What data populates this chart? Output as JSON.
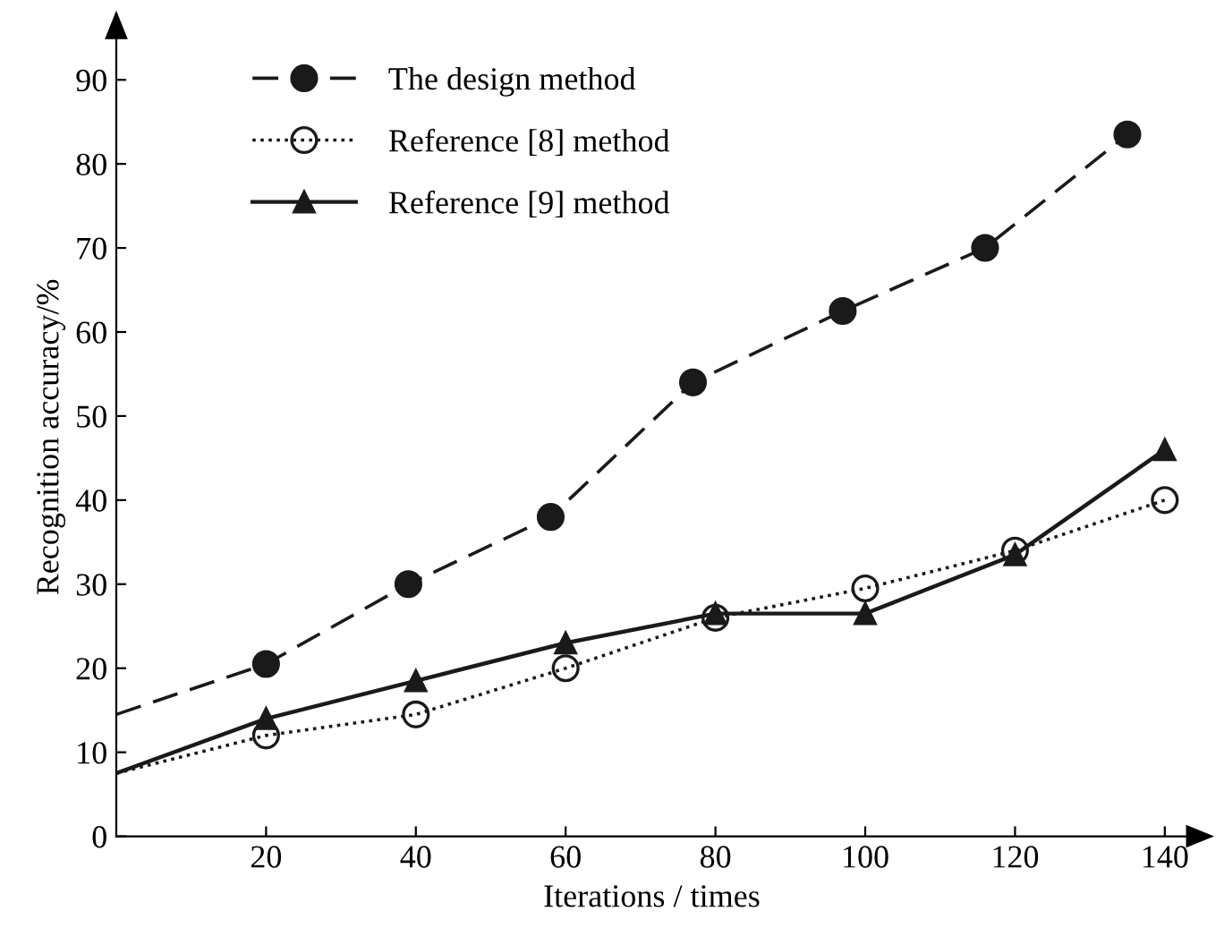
{
  "chart_data": {
    "type": "line",
    "xlabel": "Iterations / times",
    "ylabel": "Recognition accuracy/%",
    "xlim": [
      0,
      143
    ],
    "ylim": [
      0,
      95
    ],
    "xticks": [
      20,
      40,
      60,
      80,
      100,
      120,
      140
    ],
    "yticks": [
      0,
      10,
      20,
      30,
      40,
      50,
      60,
      70,
      80,
      90
    ],
    "grid": false,
    "legend": "top left",
    "series": [
      {
        "name": "The design method",
        "color": "#1a1a1a",
        "marker": "circle",
        "line_style": "dashed",
        "x": [
          0,
          20,
          39,
          58,
          77,
          97,
          116,
          135
        ],
        "values": [
          14.5,
          20.5,
          30,
          38,
          54,
          62.5,
          70,
          83.5
        ]
      },
      {
        "name": "Reference [8] method",
        "color": "#1a1a1a",
        "marker": "circle",
        "line_style": "dotted",
        "x": [
          0,
          20,
          40,
          60,
          80,
          100,
          120,
          140
        ],
        "values": [
          7.5,
          12,
          14.5,
          20,
          26,
          29.5,
          34,
          40
        ]
      },
      {
        "name": "Reference [9] method",
        "color": "#1a1a1a",
        "marker": "triangle",
        "line_style": "solid",
        "x": [
          0,
          20,
          40,
          60,
          80,
          100,
          120,
          140
        ],
        "values": [
          7.5,
          14,
          18.5,
          23,
          26.5,
          26.5,
          33.5,
          46
        ]
      }
    ]
  }
}
